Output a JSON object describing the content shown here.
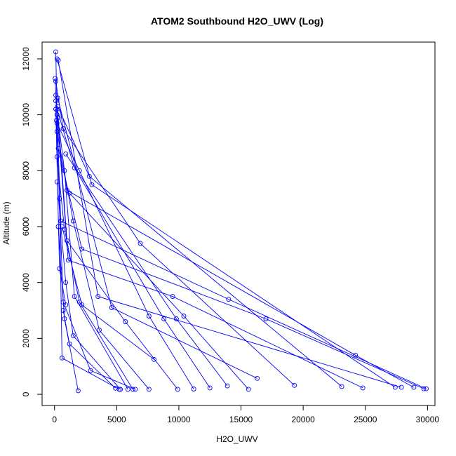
{
  "chart_data": {
    "type": "line",
    "title": "ATOM2 Southbound H2O_UWV (Log)",
    "xlabel": "H2O_UWV",
    "ylabel": "Altitude (m)",
    "xlim": [
      -1000,
      30600
    ],
    "ylim": [
      -400,
      12600
    ],
    "x_ticks": [
      0,
      5000,
      10000,
      15000,
      20000,
      25000,
      30000
    ],
    "y_ticks": [
      0,
      2000,
      4000,
      6000,
      8000,
      10000,
      12000
    ],
    "x_tick_labels": [
      "0",
      "5000",
      "10000",
      "15000",
      "20000",
      "25000",
      "30000"
    ],
    "y_tick_labels": [
      "0",
      "2000",
      "4000",
      "6000",
      "8000",
      "10000",
      "12000"
    ],
    "grid": false,
    "line_color": "#0000ff",
    "marker": "open-circle",
    "series": [
      {
        "x": [
          29900,
          14000,
          500,
          200,
          100
        ],
        "y": [
          200,
          3400,
          6200,
          10000,
          12250
        ]
      },
      {
        "x": [
          29700,
          17000,
          2200,
          300,
          50
        ],
        "y": [
          200,
          2700,
          5200,
          8800,
          11300
        ]
      },
      {
        "x": [
          28900,
          24200,
          1000,
          100
        ],
        "y": [
          250,
          1400,
          7300,
          10500
        ]
      },
      {
        "x": [
          27900,
          3500,
          300
        ],
        "y": [
          250,
          3500,
          11950
        ]
      },
      {
        "x": [
          27400,
          3000,
          200
        ],
        "y": [
          250,
          7500,
          12000
        ]
      },
      {
        "x": [
          24800,
          9500,
          1100,
          100
        ],
        "y": [
          230,
          3500,
          4800,
          10700
        ]
      },
      {
        "x": [
          23100,
          2800,
          250
        ],
        "y": [
          280,
          7800,
          10300
        ]
      },
      {
        "x": [
          19300,
          6900,
          700,
          100
        ],
        "y": [
          320,
          5400,
          9500,
          11200
        ]
      },
      {
        "x": [
          16300,
          4600,
          250
        ],
        "y": [
          570,
          3100,
          10600
        ]
      },
      {
        "x": [
          15600,
          10400,
          1200
        ],
        "y": [
          180,
          2800,
          7200
        ]
      },
      {
        "x": [
          13900,
          9800,
          900
        ],
        "y": [
          300,
          2700,
          8600
        ]
      },
      {
        "x": [
          12500,
          8800,
          1600,
          200
        ],
        "y": [
          230,
          2700,
          8100,
          10200
        ]
      },
      {
        "x": [
          11200,
          7600,
          2000,
          200
        ],
        "y": [
          190,
          2800,
          8000,
          9700
        ]
      },
      {
        "x": [
          9900,
          5700,
          1000,
          300
        ],
        "y": [
          180,
          2600,
          5500,
          9900
        ]
      },
      {
        "x": [
          7600,
          3600,
          1500,
          200
        ],
        "y": [
          180,
          2300,
          6200,
          9400
        ]
      },
      {
        "x": [
          8000,
          2200,
          600
        ],
        "y": [
          1250,
          3200,
          6000
        ]
      },
      {
        "x": [
          6500,
          2900,
          700,
          150
        ],
        "y": [
          180,
          850,
          3300,
          9800
        ]
      },
      {
        "x": [
          6300,
          2000,
          800,
          200
        ],
        "y": [
          180,
          3300,
          5900,
          8500
        ]
      },
      {
        "x": [
          5900,
          1600,
          800
        ],
        "y": [
          180,
          3500,
          8000
        ]
      },
      {
        "x": [
          5300,
          1500,
          900,
          200
        ],
        "y": [
          180,
          2100,
          4000,
          7600
        ]
      },
      {
        "x": [
          5200,
          600,
          400
        ],
        "y": [
          180,
          1300,
          7000
        ]
      },
      {
        "x": [
          4900,
          1200,
          700
        ],
        "y": [
          220,
          1800,
          3000
        ]
      },
      {
        "x": [
          1900,
          800,
          300
        ],
        "y": [
          130,
          2700,
          6000
        ]
      },
      {
        "x": [
          900,
          400,
          100
        ],
        "y": [
          3200,
          4500,
          10200
        ]
      }
    ]
  }
}
